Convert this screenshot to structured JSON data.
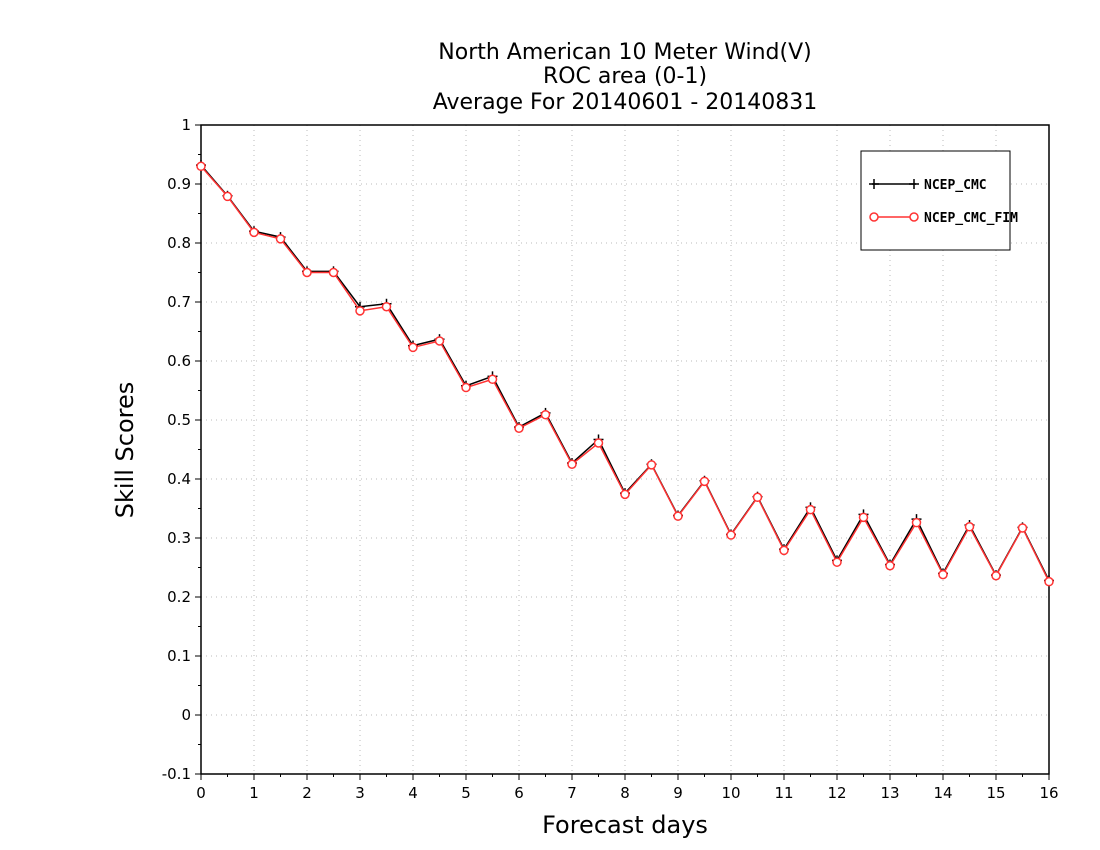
{
  "chart_data": {
    "type": "line",
    "title_lines": [
      "North American 10 Meter Wind(V)",
      "ROC area (0-1)",
      "Average For 20140601 - 20140831"
    ],
    "xlabel": "Forecast days",
    "ylabel": "Skill Scores",
    "xlim": [
      0,
      16
    ],
    "ylim": [
      -0.1,
      1
    ],
    "xticks": [
      0,
      1,
      2,
      3,
      4,
      5,
      6,
      7,
      8,
      9,
      10,
      11,
      12,
      13,
      14,
      15,
      16
    ],
    "yticks": [
      -0.1,
      0,
      0.1,
      0.2,
      0.3,
      0.4,
      0.5,
      0.6,
      0.7,
      0.8,
      0.9,
      1
    ],
    "ytick_labels": [
      "-0.1",
      "0",
      "0.1",
      "0.2",
      "0.3",
      "0.4",
      "0.5",
      "0.6",
      "0.7",
      "0.8",
      "0.9",
      "1"
    ],
    "grid": true,
    "legend_position": "top-right",
    "x": [
      0,
      0.5,
      1,
      1.5,
      2,
      2.5,
      3,
      3.5,
      4,
      4.5,
      5,
      5.5,
      6,
      6.5,
      7,
      7.5,
      8,
      8.5,
      9,
      9.5,
      10,
      10.5,
      11,
      11.5,
      12,
      12.5,
      13,
      13.5,
      14,
      14.5,
      15,
      15.5,
      16
    ],
    "series": [
      {
        "name": "NCEP_CMC",
        "color": "#000000",
        "marker": "plus",
        "values": [
          0.932,
          0.88,
          0.82,
          0.81,
          0.752,
          0.752,
          0.692,
          0.697,
          0.626,
          0.637,
          0.558,
          0.574,
          0.488,
          0.512,
          0.427,
          0.467,
          0.376,
          0.425,
          0.338,
          0.397,
          0.306,
          0.37,
          0.281,
          0.352,
          0.262,
          0.34,
          0.255,
          0.332,
          0.24,
          0.322,
          0.237,
          0.318,
          0.228
        ]
      },
      {
        "name": "NCEP_CMC_FIM",
        "color": "#ff3333",
        "marker": "circle",
        "values": [
          0.93,
          0.879,
          0.818,
          0.807,
          0.75,
          0.75,
          0.685,
          0.692,
          0.623,
          0.634,
          0.555,
          0.569,
          0.486,
          0.509,
          0.425,
          0.461,
          0.374,
          0.424,
          0.337,
          0.396,
          0.305,
          0.369,
          0.279,
          0.348,
          0.259,
          0.335,
          0.253,
          0.326,
          0.238,
          0.319,
          0.236,
          0.317,
          0.226
        ]
      }
    ]
  }
}
